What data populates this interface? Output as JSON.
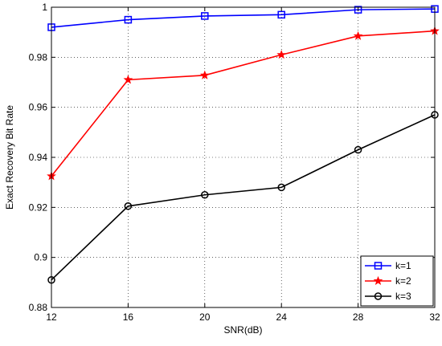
{
  "chart_data": {
    "type": "line",
    "title": "",
    "xlabel": "SNR(dB)",
    "ylabel": "Exact Recovery Bit Rate",
    "x": [
      12,
      16,
      20,
      24,
      28,
      32
    ],
    "xlim": [
      12,
      32
    ],
    "ylim": [
      0.88,
      1.0
    ],
    "x_ticks": [
      "12",
      "16",
      "20",
      "24",
      "28",
      "32"
    ],
    "y_ticks": [
      "0.88",
      "0.9",
      "0.92",
      "0.94",
      "0.96",
      "0.98",
      "1"
    ],
    "grid": true,
    "legend_position": "bottom-right",
    "series": [
      {
        "name": "k=1",
        "color": "#0000ff",
        "marker": "square",
        "values": [
          0.992,
          0.995,
          0.9965,
          0.997,
          0.999,
          0.9993
        ]
      },
      {
        "name": "k=2",
        "color": "#ff0000",
        "marker": "star",
        "values": [
          0.9325,
          0.971,
          0.9728,
          0.981,
          0.9885,
          0.9905
        ]
      },
      {
        "name": "k=3",
        "color": "#000000",
        "marker": "circle",
        "values": [
          0.891,
          0.9205,
          0.925,
          0.928,
          0.943,
          0.957
        ]
      }
    ]
  }
}
